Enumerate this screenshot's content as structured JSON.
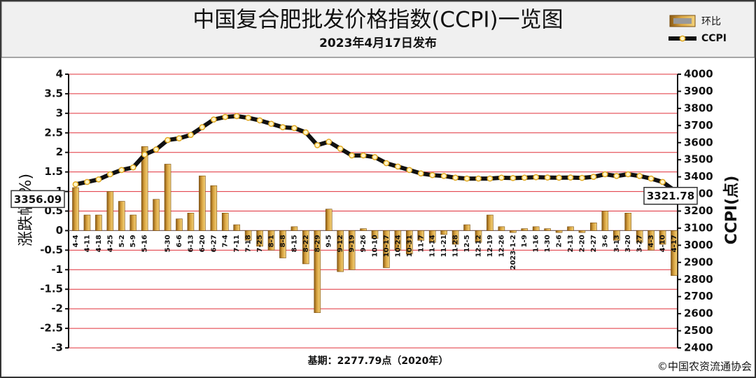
{
  "chart_data": {
    "type": "bar-line",
    "title": "中国复合肥批发价格指数(CCPI)一览图",
    "subtitle": "2023年4月17日发布",
    "y_label": "涨跌幅(%)",
    "y2_label": "CCPI(点)",
    "footnote": "基期：2277.79点（2020年）",
    "source": "©中国农资流通协会",
    "categories": [
      "4-4",
      "4-11",
      "4-18",
      "4-25",
      "5-2",
      "5-9",
      "5-16",
      null,
      "5-30",
      "6-6",
      "6-13",
      "6-20",
      "6-27",
      "7-4",
      "7-11",
      "7-18",
      "7-25",
      "8-1",
      "8-8",
      "8-15",
      "8-22",
      "8-29",
      "9-5",
      "9-12",
      "9-19",
      "9-26",
      "10-10",
      "10-17",
      "10-24",
      "10-31",
      "11-7",
      "11-14",
      "11-21",
      "11-28",
      "12-5",
      "12-12",
      "12-19",
      "12-26",
      "2023-1-2",
      "1-9",
      "1-16",
      "1-30",
      "2-6",
      "2-13",
      "2-20",
      "2-27",
      "3-6",
      "3-13",
      "3-20",
      "3-27",
      "4-3",
      "4-10",
      "4-17"
    ],
    "series": [
      {
        "name": "环比",
        "color": "#d9a441",
        "values": [
          1.1,
          0.4,
          0.4,
          1.0,
          0.75,
          0.4,
          2.15,
          0.8,
          1.7,
          0.3,
          0.45,
          1.4,
          1.15,
          0.45,
          0.15,
          -0.25,
          -0.4,
          -0.5,
          -0.7,
          0.1,
          -0.85,
          -2.1,
          0.55,
          -1.05,
          -1.0,
          0.05,
          -0.2,
          -0.95,
          -0.5,
          -0.6,
          -0.25,
          -0.3,
          -0.1,
          -0.35,
          0.15,
          -0.3,
          0.4,
          0.1,
          -0.05,
          0.05,
          0.1,
          0.05,
          -0.05,
          0.1,
          -0.05,
          0.2,
          0.5,
          -0.25,
          0.45,
          -0.3,
          -0.5,
          -0.35,
          -1.15
        ]
      },
      {
        "name": "CCPI",
        "color": "#111111",
        "axis": "y2",
        "values": [
          3356.09,
          3370,
          3385,
          3415,
          3440,
          3455,
          3530,
          3560,
          3615,
          3625,
          3645,
          3690,
          3735,
          3750,
          3755,
          3745,
          3730,
          3710,
          3690,
          3685,
          3660,
          3585,
          3605,
          3565,
          3525,
          3525,
          3515,
          3480,
          3460,
          3440,
          3420,
          3410,
          3405,
          3395,
          3390,
          3390,
          3390,
          3395,
          3393,
          3395,
          3398,
          3396,
          3395,
          3396,
          3394,
          3400,
          3415,
          3405,
          3415,
          3405,
          3390,
          3370,
          3321.78
        ]
      }
    ],
    "ylim": [
      -3,
      4
    ],
    "yticks": [
      -3,
      -2.5,
      -2,
      -1.5,
      -1,
      -0.5,
      0,
      0.5,
      1,
      1.5,
      2,
      2.5,
      3,
      3.5,
      4
    ],
    "y2lim": [
      2400,
      4000
    ],
    "y2ticks": [
      2400,
      2500,
      2600,
      2700,
      2800,
      2900,
      3000,
      3100,
      3200,
      3300,
      3400,
      3500,
      3600,
      3700,
      3800,
      3900,
      4000
    ],
    "grid": true,
    "grid_color": "#e0303a",
    "legend": "top-right"
  }
}
